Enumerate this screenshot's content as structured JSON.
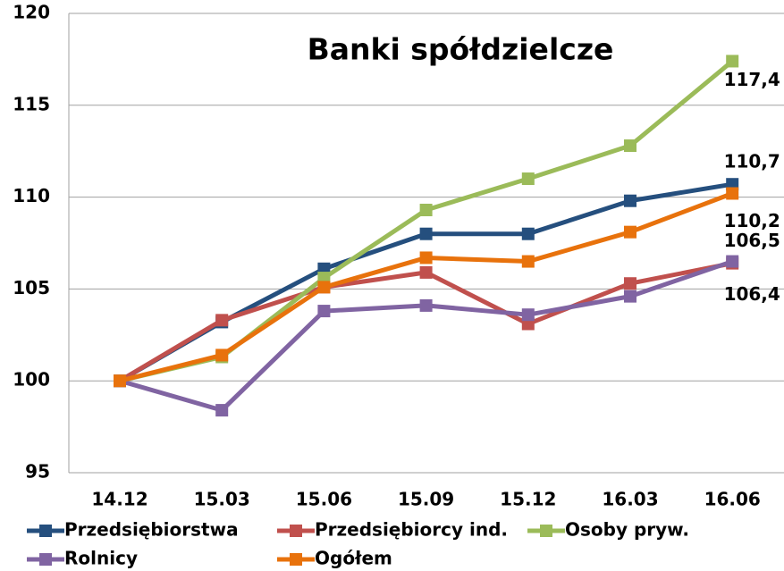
{
  "chart_data": {
    "type": "line",
    "title": "Banki spółdzielcze",
    "categories": [
      "14.12",
      "15.03",
      "15.06",
      "15.09",
      "15.12",
      "16.03",
      "16.06"
    ],
    "ylim": [
      95,
      120
    ],
    "yticks": [
      95,
      100,
      105,
      110,
      115,
      120
    ],
    "grid": true,
    "series": [
      {
        "name": "Przedsiębiorstwa",
        "color": "#254f7e",
        "values": [
          100,
          103.2,
          106.1,
          108.0,
          108.0,
          109.8,
          110.7
        ],
        "value_labels": [
          null,
          null,
          null,
          null,
          null,
          null,
          "110,7"
        ]
      },
      {
        "name": "Przedsiębiorcy ind.",
        "color": "#c0504d",
        "values": [
          100,
          103.3,
          105.1,
          105.9,
          103.1,
          105.3,
          106.4
        ],
        "value_labels": [
          null,
          null,
          null,
          null,
          null,
          null,
          "106,4"
        ]
      },
      {
        "name": "Osoby pryw.",
        "color": "#9bbb59",
        "values": [
          100,
          101.3,
          105.6,
          109.3,
          111.0,
          112.8,
          117.4
        ],
        "value_labels": [
          null,
          null,
          null,
          null,
          null,
          null,
          "117,4"
        ]
      },
      {
        "name": "Rolnicy",
        "color": "#8064a2",
        "values": [
          100,
          98.4,
          103.8,
          104.1,
          103.6,
          104.6,
          106.5
        ],
        "value_labels": [
          null,
          null,
          null,
          null,
          null,
          null,
          "106,5"
        ]
      },
      {
        "name": "Ogółem",
        "color": "#e8720c",
        "values": [
          100,
          101.4,
          105.1,
          106.7,
          106.5,
          108.1,
          110.2
        ],
        "value_labels": [
          null,
          null,
          null,
          null,
          null,
          null,
          "110,2"
        ]
      }
    ]
  }
}
